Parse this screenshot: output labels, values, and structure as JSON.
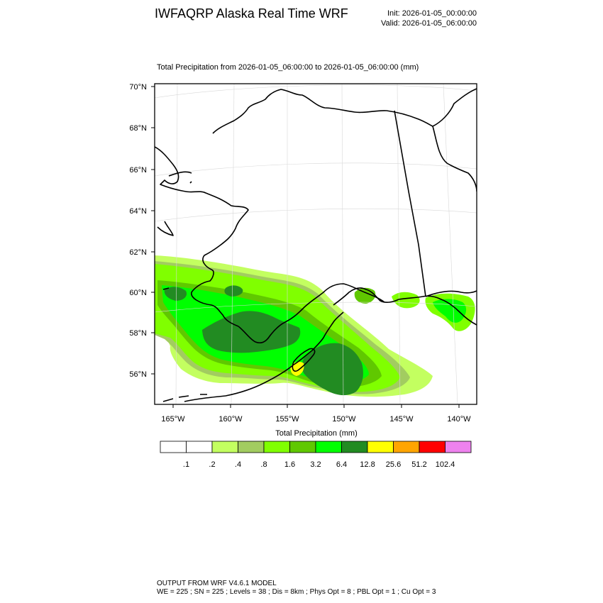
{
  "header": {
    "title": "IWFAQRP Alaska Real Time WRF",
    "init": "Init: 2026-01-05_00:00:00",
    "valid": "Valid: 2026-01-05_06:00:00"
  },
  "plot": {
    "title": "Total Precipitation from 2026-01-05_06:00:00 to 2026-01-05_06:00:00   (mm)",
    "lat_labels": [
      "70°N",
      "68°N",
      "66°N",
      "64°N",
      "62°N",
      "60°N",
      "58°N",
      "56°N"
    ],
    "lon_labels": [
      "165°W",
      "160°W",
      "155°W",
      "150°W",
      "145°W",
      "140°W"
    ]
  },
  "colorbar": {
    "title": "Total Precipitation  (mm)",
    "levels": [
      ".1",
      ".2",
      ".4",
      ".8",
      "1.6",
      "3.2",
      "6.4",
      "12.8",
      "25.6",
      "51.2",
      "102.4"
    ],
    "colors": [
      "#ffffff",
      "#ffffff",
      "#c3ff60",
      "#a2cc60",
      "#80ff00",
      "#60c800",
      "#00ff00",
      "#228b22",
      "#ffff00",
      "#ffa500",
      "#ff0000",
      "#ee82ee"
    ]
  },
  "footer": {
    "line1": "OUTPUT FROM WRF V4.6.1 MODEL",
    "line2": "WE = 225 ; SN = 225 ; Levels = 38 ; Dis = 8km ; Phys Opt = 8 ; PBL Opt = 1 ; Cu Opt = 3"
  }
}
